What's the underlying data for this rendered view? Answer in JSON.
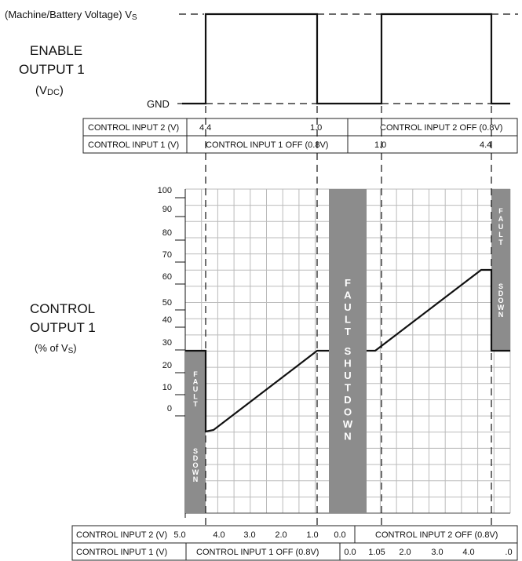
{
  "top_labels": {
    "vs_left": "(Machine/Battery Voltage) V",
    "vs_sub": "S",
    "gnd": "GND",
    "enable_line1": "ENABLE",
    "enable_line2": "OUTPUT 1",
    "enable_unit_open": "(V",
    "enable_unit_sub": "DC",
    "enable_unit_close": ")"
  },
  "upper_table": {
    "row1_label": "CONTROL INPUT 2 (V)",
    "row1_left_a": "4.4",
    "row1_left_b": "1.0",
    "row1_right": "CONTROL INPUT 2 OFF (0.8V)",
    "row2_label": "CONTROL INPUT 1 (V)",
    "row2_left": "CONTROL INPUT 1 OFF (0.8V)",
    "row2_right_a": "1.0",
    "row2_right_b": "4.4"
  },
  "control_label": {
    "line1": "CONTROL",
    "line2": "OUTPUT 1",
    "unit_open": "(% of V",
    "unit_sub": "S",
    "unit_close": ")"
  },
  "y_ticks": [
    "100",
    "90",
    "80",
    "70",
    "60",
    "50",
    "40",
    "30",
    "20",
    "10",
    "0"
  ],
  "fault_center": "FAULT SHUTDOWN",
  "fault_left_top": "FAULT",
  "fault_left_bottom": "SDOWN",
  "fault_right_top": "FAULT",
  "fault_right_bottom": "SDOWN",
  "lower_table": {
    "row1_label": "CONTROL INPUT 2 (V)",
    "row1_vals": [
      "5.0",
      "4.0",
      "3.0",
      "2.0",
      "1.0",
      "0.0"
    ],
    "row1_right": "CONTROL INPUT 2 OFF (0.8V)",
    "row2_label": "CONTROL INPUT 1 (V)",
    "row2_left": "CONTROL INPUT 1 OFF (0.8V)",
    "row2_vals": [
      "0.0",
      "1.05",
      "2.0",
      "3.0",
      "4.0",
      ".0"
    ]
  },
  "colors": {
    "fault_fill": "#8c8c8c",
    "grid": "#bbbbbb",
    "line": "#111111"
  }
}
